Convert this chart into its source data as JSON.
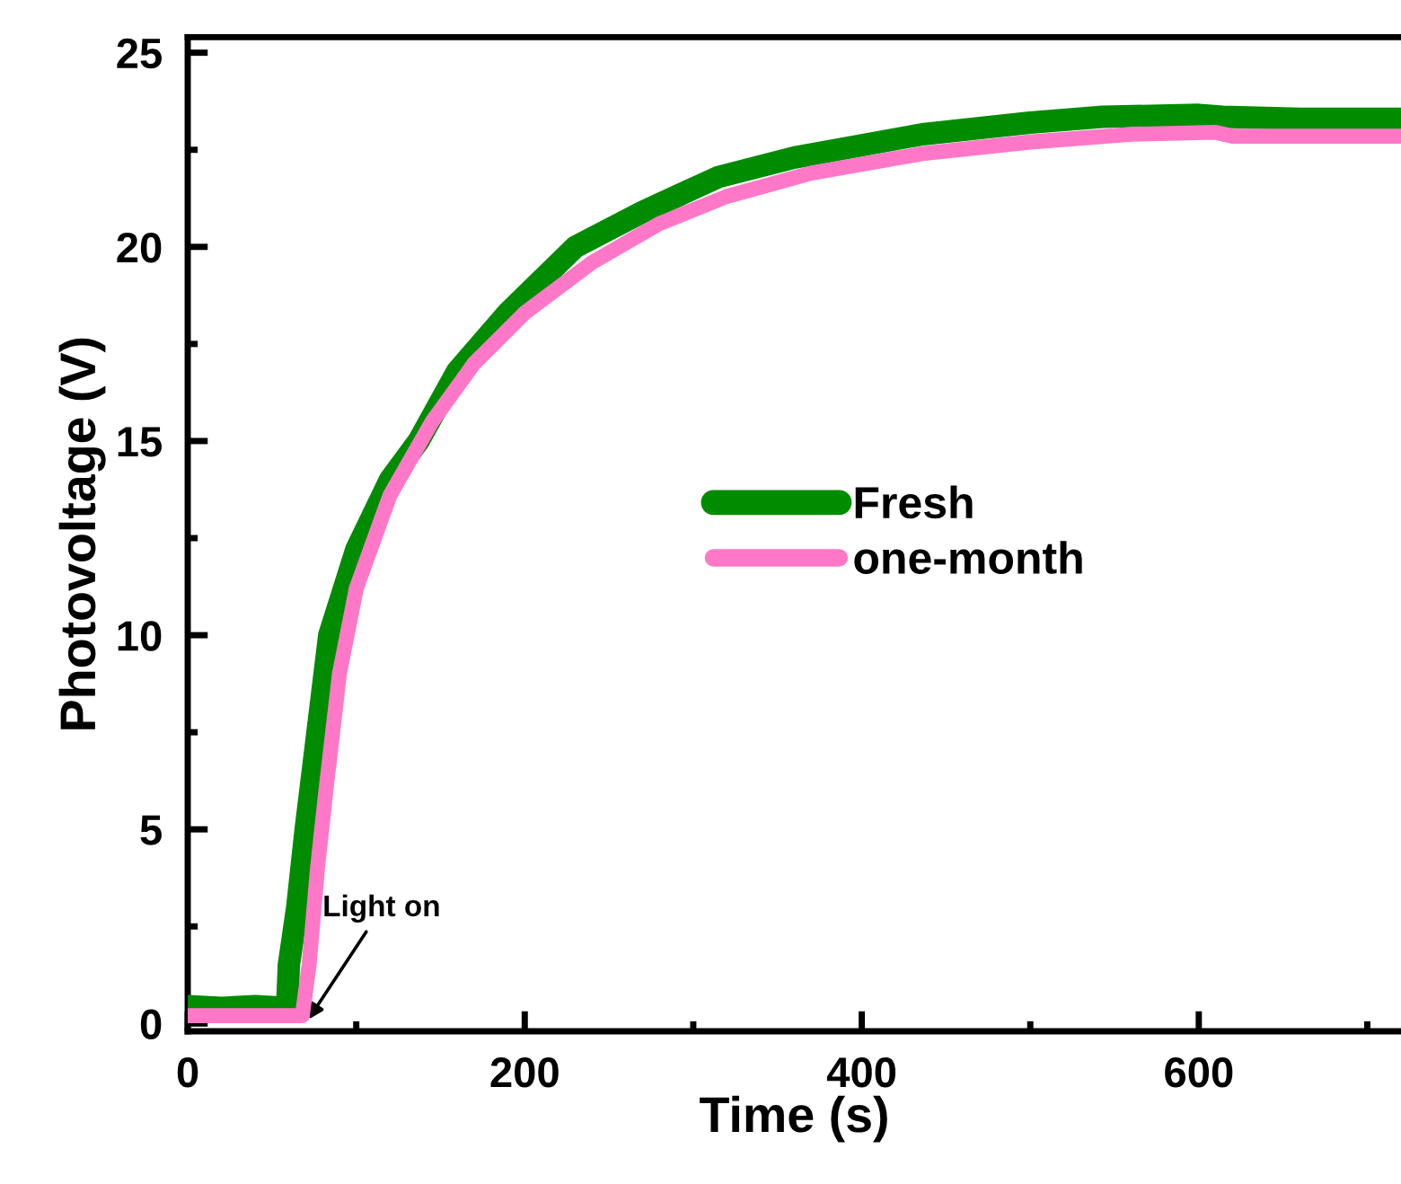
{
  "chart_data": {
    "type": "line",
    "xlabel": "Time (s)",
    "ylabel": "Photovoltage (V)",
    "xlim": [
      0,
      720
    ],
    "ylim": [
      -0.2,
      25.4
    ],
    "xticks": [
      0,
      200,
      400,
      600
    ],
    "yticks": [
      0,
      5,
      10,
      15,
      20,
      25
    ],
    "grid": false,
    "legend": "right",
    "marker": "none",
    "line_style": "solid",
    "annotations": [
      {
        "text": "Light on",
        "x": 70,
        "y": 0
      }
    ],
    "series": [
      {
        "name": "Fresh",
        "color": "#008c00",
        "x": [
          0,
          20,
          40,
          59,
          60,
          65,
          70,
          77,
          84,
          100,
          120,
          137,
          160,
          190,
          230,
          270,
          315,
          360,
          436,
          500,
          543,
          600,
          614,
          660,
          720
        ],
        "values": [
          0.45,
          0.4,
          0.45,
          0.4,
          1.5,
          3,
          5,
          7.5,
          10,
          12.2,
          14.0,
          15.0,
          16.8,
          18.3,
          20.0,
          20.9,
          21.8,
          22.3,
          22.9,
          23.2,
          23.35,
          23.4,
          23.35,
          23.3,
          23.3
        ]
      },
      {
        "name": "one-month",
        "color": "#ff78c8",
        "x": [
          0,
          30,
          62,
          68,
          72,
          77,
          82,
          90,
          100,
          120,
          145,
          170,
          200,
          240,
          280,
          320,
          370,
          436,
          500,
          560,
          610,
          620,
          720
        ],
        "values": [
          0.2,
          0.2,
          0.2,
          0.2,
          1.5,
          4,
          6,
          9,
          11.2,
          13.6,
          15.5,
          17,
          18.3,
          19.6,
          20.6,
          21.3,
          21.9,
          22.4,
          22.7,
          22.9,
          22.95,
          22.85,
          22.85
        ]
      }
    ]
  }
}
